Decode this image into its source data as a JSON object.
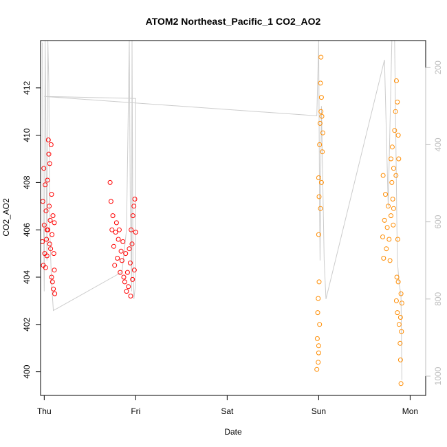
{
  "chart_data": {
    "type": "scatter",
    "title": "ATOM2 Northeast_Pacific_1 CO2_AO2",
    "xlabel": "Date",
    "ylabel": "CO2_AO2",
    "x_ticks": [
      "Thu",
      "Fri",
      "Sat",
      "Sun",
      "Mon"
    ],
    "x_range": [
      -0.04,
      4.17
    ],
    "ylim": [
      399.0,
      414.0
    ],
    "y_ticks": [
      400,
      402,
      404,
      406,
      408,
      410,
      412
    ],
    "y2_ticks": [
      200,
      400,
      600,
      800,
      1000
    ],
    "y2lim": [
      1050,
      130
    ],
    "colors": {
      "series_1": "#ff0000",
      "series_2": "#ff8c00",
      "secondary_line": "#cccccc",
      "axis": "#000000",
      "secondary_axis": "#bdbdbd"
    },
    "series": [
      {
        "color": "#ff0000",
        "values": [
          [
            -0.02,
            405.5
          ],
          [
            -0.015,
            407.2
          ],
          [
            -0.01,
            404.5
          ],
          [
            -0.005,
            408.6
          ],
          [
            0.0,
            406.2
          ],
          [
            0.005,
            405.0
          ],
          [
            0.01,
            407.9
          ],
          [
            0.015,
            404.4
          ],
          [
            0.02,
            406.8
          ],
          [
            0.025,
            405.6
          ],
          [
            0.03,
            404.9
          ],
          [
            0.035,
            408.1
          ],
          [
            0.04,
            406.0
          ],
          [
            0.045,
            409.8
          ],
          [
            0.05,
            409.2
          ],
          [
            0.055,
            407.0
          ],
          [
            0.06,
            408.8
          ],
          [
            0.065,
            406.4
          ],
          [
            0.07,
            405.2
          ],
          [
            0.075,
            409.6
          ],
          [
            0.08,
            404.0
          ],
          [
            0.085,
            405.8
          ],
          [
            0.09,
            403.8
          ],
          [
            0.095,
            406.6
          ],
          [
            0.1,
            403.5
          ],
          [
            0.105,
            405.0
          ],
          [
            0.11,
            404.3
          ],
          [
            0.115,
            403.3
          ],
          [
            0.11,
            406.3
          ],
          [
            0.08,
            407.5
          ],
          [
            0.06,
            405.4
          ],
          [
            0.03,
            406.0
          ],
          [
            0.72,
            408.0
          ],
          [
            0.73,
            407.2
          ],
          [
            0.74,
            406.0
          ],
          [
            0.75,
            406.6
          ],
          [
            0.76,
            405.3
          ],
          [
            0.77,
            404.5
          ],
          [
            0.78,
            405.9
          ],
          [
            0.79,
            406.3
          ],
          [
            0.8,
            404.8
          ],
          [
            0.81,
            405.6
          ],
          [
            0.82,
            406.0
          ],
          [
            0.83,
            404.2
          ],
          [
            0.84,
            405.1
          ],
          [
            0.85,
            404.7
          ],
          [
            0.86,
            405.5
          ],
          [
            0.87,
            404.0
          ],
          [
            0.88,
            403.8
          ],
          [
            0.89,
            405.0
          ],
          [
            0.9,
            403.4
          ],
          [
            0.91,
            404.2
          ],
          [
            0.92,
            403.6
          ],
          [
            0.93,
            405.2
          ],
          [
            0.94,
            404.6
          ],
          [
            0.95,
            406.0
          ],
          [
            0.96,
            405.4
          ],
          [
            0.97,
            406.6
          ],
          [
            0.98,
            407.0
          ],
          [
            0.99,
            407.3
          ],
          [
            1.0,
            405.9
          ],
          [
            0.985,
            404.3
          ],
          [
            0.965,
            403.9
          ],
          [
            0.945,
            403.2
          ]
        ]
      },
      {
        "color": "#ff8c00",
        "values": [
          [
            2.98,
            400.1
          ],
          [
            2.985,
            401.4
          ],
          [
            2.99,
            402.5
          ],
          [
            2.995,
            403.1
          ],
          [
            3.0,
            400.8
          ],
          [
            3.005,
            403.8
          ],
          [
            3.0,
            405.8
          ],
          [
            3.005,
            407.4
          ],
          [
            3.0,
            408.2
          ],
          [
            3.01,
            409.6
          ],
          [
            3.015,
            410.5
          ],
          [
            3.02,
            412.2
          ],
          [
            3.025,
            413.3
          ],
          [
            3.03,
            411.6
          ],
          [
            3.035,
            410.8
          ],
          [
            3.04,
            409.3
          ],
          [
            3.03,
            408.0
          ],
          [
            3.02,
            406.9
          ],
          [
            3.01,
            402.0
          ],
          [
            3.0,
            401.1
          ],
          [
            2.995,
            400.4
          ],
          [
            3.045,
            410.1
          ],
          [
            3.025,
            411.0
          ],
          [
            3.72,
            406.4
          ],
          [
            3.73,
            407.5
          ],
          [
            3.74,
            405.2
          ],
          [
            3.75,
            406.1
          ],
          [
            3.76,
            407.0
          ],
          [
            3.77,
            405.6
          ],
          [
            3.78,
            404.7
          ],
          [
            3.79,
            406.6
          ],
          [
            3.8,
            408.0
          ],
          [
            3.805,
            409.5
          ],
          [
            3.81,
            407.3
          ],
          [
            3.815,
            406.2
          ],
          [
            3.82,
            408.6
          ],
          [
            3.83,
            410.2
          ],
          [
            3.84,
            411.0
          ],
          [
            3.85,
            412.3
          ],
          [
            3.86,
            411.4
          ],
          [
            3.87,
            410.0
          ],
          [
            3.875,
            409.0
          ],
          [
            3.865,
            405.6
          ],
          [
            3.855,
            404.0
          ],
          [
            3.85,
            403.0
          ],
          [
            3.86,
            402.5
          ],
          [
            3.87,
            403.8
          ],
          [
            3.88,
            402.0
          ],
          [
            3.89,
            401.2
          ],
          [
            3.895,
            400.5
          ],
          [
            3.9,
            399.5
          ],
          [
            3.905,
            401.7
          ],
          [
            3.91,
            402.9
          ],
          [
            3.9,
            403.3
          ],
          [
            3.895,
            402.3
          ],
          [
            3.7,
            405.7
          ],
          [
            3.705,
            408.3
          ],
          [
            3.71,
            404.8
          ],
          [
            3.79,
            409.0
          ],
          [
            3.82,
            406.9
          ],
          [
            3.845,
            408.3
          ]
        ]
      }
    ],
    "secondary_line": [
      [
        -0.02,
        135
      ],
      [
        -0.015,
        380
      ],
      [
        -0.01,
        600
      ],
      [
        -0.005,
        640
      ],
      [
        0.0,
        780
      ],
      [
        0.01,
        130
      ],
      [
        0.02,
        420
      ],
      [
        0.03,
        700
      ],
      [
        0.04,
        130
      ],
      [
        0.05,
        240
      ],
      [
        0.06,
        620
      ],
      [
        0.08,
        760
      ],
      [
        0.1,
        830
      ],
      [
        0.85,
        730
      ],
      [
        0.9,
        620
      ],
      [
        0.93,
        130
      ],
      [
        0.94,
        540
      ],
      [
        0.955,
        780
      ],
      [
        0.96,
        130
      ],
      [
        0.97,
        700
      ],
      [
        0.98,
        800
      ],
      [
        1.0,
        760
      ],
      [
        1.0,
        280
      ],
      [
        0.0,
        275
      ],
      [
        2.98,
        325
      ],
      [
        3.0,
        130
      ],
      [
        3.01,
        560
      ],
      [
        3.015,
        700
      ],
      [
        3.03,
        300
      ],
      [
        3.06,
        700
      ],
      [
        3.08,
        800
      ],
      [
        3.72,
        180
      ],
      [
        3.76,
        560
      ],
      [
        3.8,
        130
      ],
      [
        3.83,
        130
      ],
      [
        3.86,
        700
      ],
      [
        3.88,
        760
      ],
      [
        3.9,
        790
      ],
      [
        3.91,
        1010
      ]
    ]
  }
}
